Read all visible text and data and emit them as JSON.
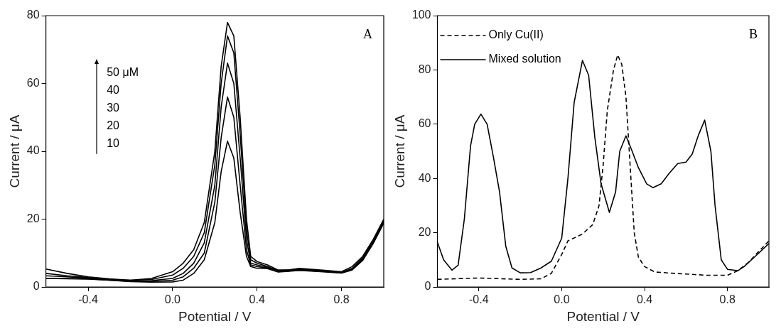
{
  "chart_data": [
    {
      "type": "line",
      "title": "A",
      "xlabel": "Potential / V",
      "ylabel": "Current / μA",
      "xlim": [
        -0.6,
        1.0
      ],
      "ylim": [
        0,
        80
      ],
      "xticks": [
        -0.4,
        {
          "value": 0,
          "label": "0.0"
        },
        0.4,
        0.8
      ],
      "yticks": [
        0,
        20,
        40,
        60,
        80
      ],
      "grid": false,
      "legend": false,
      "marker": "none",
      "line_style": "solid",
      "annotations": [
        "50 μM",
        "40",
        "30",
        "20",
        "10"
      ],
      "x": [
        -0.6,
        -0.5,
        -0.4,
        -0.3,
        -0.2,
        -0.1,
        0,
        0.05,
        0.1,
        0.15,
        0.2,
        0.23,
        0.26,
        0.29,
        0.32,
        0.35,
        0.37,
        0.4,
        0.45,
        0.5,
        0.55,
        0.6,
        0.7,
        0.8,
        0.85,
        0.9,
        0.95,
        1.0
      ],
      "series": [
        {
          "color": "#000000",
          "values": [
            5.3,
            4,
            3,
            2.4,
            2,
            2.5,
            4.5,
            7,
            11,
            19,
            40,
            65,
            78,
            74,
            50,
            20,
            9,
            7.5,
            6.5,
            5,
            5,
            5.5,
            5,
            4.5,
            6,
            9,
            14,
            20
          ]
        },
        {
          "color": "#000000",
          "values": [
            4,
            3.3,
            2.8,
            2.2,
            2,
            2.2,
            3.5,
            5.5,
            9,
            16,
            36,
            60,
            74,
            69,
            45,
            17,
            8,
            7,
            6,
            4.8,
            5,
            5.3,
            4.8,
            4.3,
            5.5,
            8.5,
            13.5,
            19.5
          ]
        },
        {
          "color": "#000000",
          "values": [
            3.3,
            3,
            2.6,
            2.1,
            1.8,
            1.9,
            2.5,
            4,
            7,
            13,
            30,
            53,
            66,
            60,
            38,
            14,
            7,
            6.5,
            5.8,
            4.6,
            4.8,
            5.2,
            4.7,
            4.2,
            5.3,
            8.3,
            13.3,
            19.3
          ]
        },
        {
          "color": "#000000",
          "values": [
            2.5,
            2.5,
            2.4,
            2,
            1.7,
            1.6,
            2,
            3,
            5.5,
            10,
            25,
            44,
            56,
            50,
            30,
            11,
            6.5,
            6,
            5.6,
            4.5,
            4.7,
            5,
            4.6,
            4.2,
            5.2,
            8,
            13,
            19
          ]
        },
        {
          "color": "#000000",
          "values": [
            2.5,
            2.4,
            2.3,
            2,
            1.6,
            1.4,
            1.5,
            2,
            4,
            8,
            19,
            34,
            43,
            38,
            22,
            9,
            6,
            5.5,
            5.4,
            4.4,
            4.6,
            4.9,
            4.5,
            4.1,
            5,
            7.8,
            12.8,
            18.8
          ]
        }
      ]
    },
    {
      "type": "line",
      "title": "B",
      "xlabel": "Potential / V",
      "ylabel": "Current / μA",
      "xlim": [
        -0.6,
        1.0
      ],
      "ylim": [
        0,
        100
      ],
      "xticks": [
        -0.4,
        {
          "value": 0,
          "label": "0.0"
        },
        0.4,
        0.8
      ],
      "yticks": [
        0,
        20,
        40,
        60,
        80,
        100
      ],
      "grid": false,
      "legend": "top left",
      "marker": "none",
      "series": [
        {
          "name": "Only Cu(II)",
          "color": "#000000",
          "line_style": "dashed",
          "x": [
            -0.6,
            -0.4,
            -0.2,
            -0.1,
            -0.05,
            0.0,
            0.03,
            0.1,
            0.15,
            0.18,
            0.2,
            0.22,
            0.25,
            0.27,
            0.29,
            0.31,
            0.33,
            0.35,
            0.37,
            0.4,
            0.45,
            0.55,
            0.7,
            0.8,
            0.85,
            0.9,
            0.95,
            1.0
          ],
          "values": [
            2.8,
            3.3,
            2.8,
            3,
            5,
            12,
            17,
            19.5,
            23,
            30,
            45,
            65,
            80,
            85.5,
            82,
            70,
            45,
            20,
            11,
            7.5,
            5.5,
            5,
            4.3,
            4.3,
            6,
            9,
            13,
            17
          ]
        },
        {
          "name": "Mixed solution",
          "color": "#000000",
          "line_style": "solid",
          "x": [
            -0.6,
            -0.57,
            -0.53,
            -0.5,
            -0.47,
            -0.44,
            -0.42,
            -0.39,
            -0.36,
            -0.33,
            -0.3,
            -0.27,
            -0.24,
            -0.2,
            -0.15,
            -0.1,
            -0.05,
            0.0,
            0.03,
            0.06,
            0.1,
            0.13,
            0.16,
            0.19,
            0.23,
            0.26,
            0.28,
            0.31,
            0.34,
            0.37,
            0.41,
            0.44,
            0.48,
            0.52,
            0.56,
            0.6,
            0.63,
            0.66,
            0.69,
            0.72,
            0.74,
            0.77,
            0.8,
            0.85,
            0.88,
            0.93,
            1.0
          ],
          "values": [
            16.5,
            10,
            6.2,
            8,
            25,
            52,
            60,
            63.7,
            60,
            48,
            35,
            15,
            7,
            5.2,
            5.3,
            7,
            9.5,
            18,
            40,
            68,
            83.5,
            78,
            55,
            38,
            27.5,
            35,
            50,
            55.7,
            50,
            44,
            38,
            36.6,
            38,
            42,
            45.5,
            46,
            49,
            56,
            61.5,
            50,
            30,
            10,
            6.5,
            6,
            7.5,
            11,
            16
          ]
        }
      ]
    }
  ]
}
